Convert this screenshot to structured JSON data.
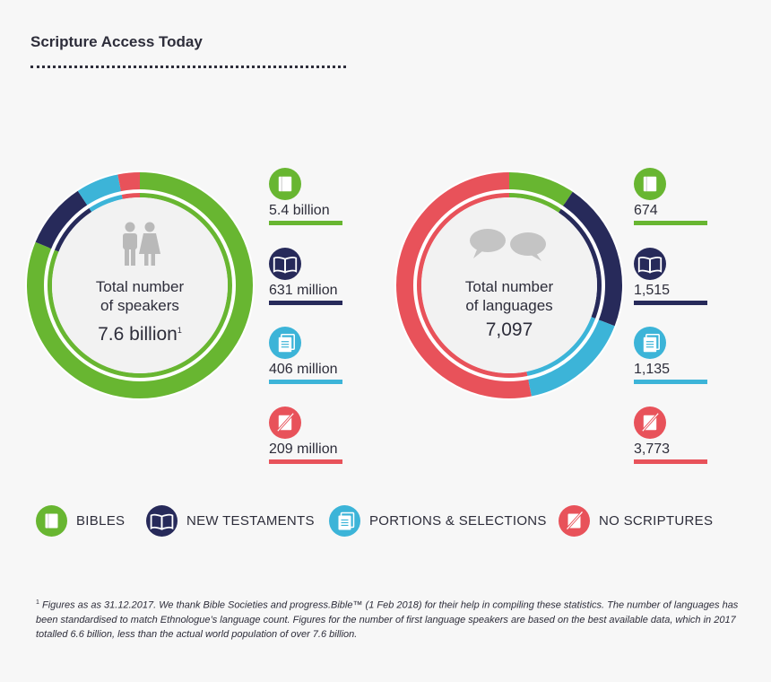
{
  "header": {
    "title": "Scripture Access Today"
  },
  "colors": {
    "bibles": "#68b631",
    "new_testaments": "#272a5a",
    "portions": "#3cb4d8",
    "no_scriptures": "#e8525a"
  },
  "chart_data": [
    {
      "type": "pie",
      "title": "Total number of speakers",
      "center": {
        "line1": "Total number",
        "line2": "of speakers",
        "value": "7.6 billion",
        "footnote_mark": "1"
      },
      "categories": [
        "Bibles",
        "New Testaments",
        "Portions & Selections",
        "No Scriptures"
      ],
      "values": [
        5.4,
        0.631,
        0.406,
        0.209
      ],
      "value_labels": [
        "5.4 billion",
        "631 million",
        "406 million",
        "209 million"
      ],
      "unit": "billion speakers",
      "icons": [
        "bible-icon",
        "new-testament-icon",
        "portions-icon",
        "no-scriptures-icon"
      ]
    },
    {
      "type": "pie",
      "title": "Total number of languages",
      "center": {
        "line1": "Total number",
        "line2": "of languages",
        "value": "7,097"
      },
      "categories": [
        "Bibles",
        "New Testaments",
        "Portions & Selections",
        "No Scriptures"
      ],
      "values": [
        674,
        1515,
        1135,
        3773
      ],
      "value_labels": [
        "674",
        "1,515",
        "1,135",
        "3,773"
      ],
      "unit": "languages",
      "icons": [
        "bible-icon",
        "new-testament-icon",
        "portions-icon",
        "no-scriptures-icon"
      ]
    }
  ],
  "legend": [
    {
      "label": "BIBLES",
      "icon": "bible-icon"
    },
    {
      "label": "NEW TESTAMENTS",
      "icon": "new-testament-icon"
    },
    {
      "label": "PORTIONS & SELECTIONS",
      "icon": "portions-icon"
    },
    {
      "label": "NO SCRIPTURES",
      "icon": "no-scriptures-icon"
    }
  ],
  "footnote": {
    "mark": "1",
    "text": "Figures as as 31.12.2017. We thank Bible Societies and progress.Bible™ (1 Feb 2018) for their help in compiling these statistics. The number of languages has been standardised to match Ethnologue’s language count. Figures for the number of first language speakers are based on the best available data, which in 2017 totalled 6.6 billion, less than the actual world population of over 7.6 billion."
  }
}
